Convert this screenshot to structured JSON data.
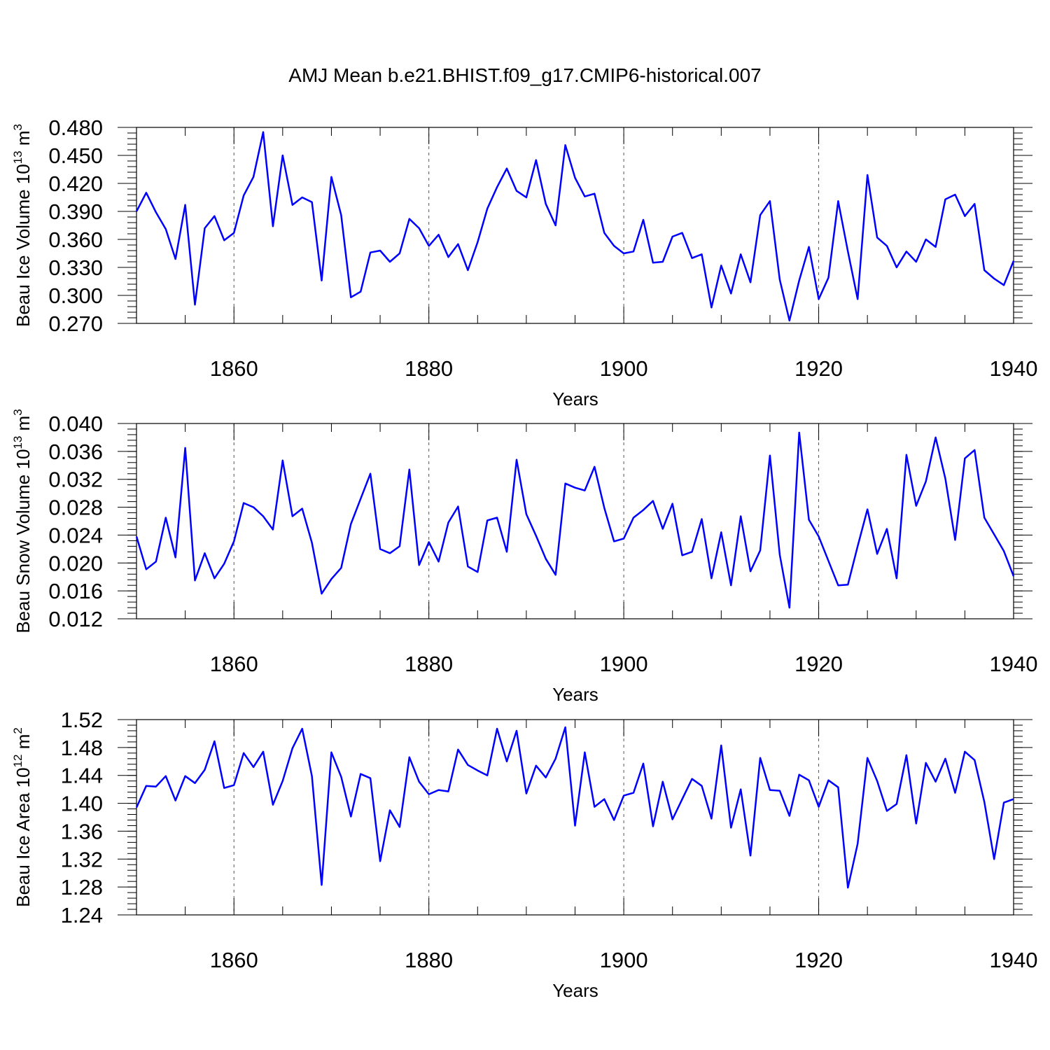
{
  "title": "AMJ Mean b.e21.BHIST.f09_g17.CMIP6-historical.007",
  "chart_data": [
    {
      "type": "line",
      "name": "ice-volume",
      "ylabel": "Beau Ice Volume 10",
      "ylabel_exp": "13",
      "ylabel_unit": " m",
      "ylabel_unit_exp": "3",
      "xlabel": "Years",
      "xlim": [
        1850,
        1940
      ],
      "ylim": [
        0.27,
        0.48
      ],
      "yticks": [
        0.27,
        0.3,
        0.33,
        0.36,
        0.39,
        0.42,
        0.45,
        0.48
      ],
      "ytick_labels": [
        "0.270",
        "0.300",
        "0.330",
        "0.360",
        "0.390",
        "0.420",
        "0.450",
        "0.480"
      ],
      "yminor_step": 0.006,
      "xticks": [
        1860,
        1880,
        1900,
        1920,
        1940
      ],
      "xtick_labels": [
        "1860",
        "1880",
        "1900",
        "1920",
        "1940"
      ],
      "grid_x": [
        1860,
        1880,
        1900,
        1920
      ],
      "x_start": 1850,
      "values": [
        0.39,
        0.41,
        0.389,
        0.371,
        0.339,
        0.397,
        0.29,
        0.372,
        0.385,
        0.359,
        0.367,
        0.407,
        0.427,
        0.475,
        0.374,
        0.45,
        0.397,
        0.405,
        0.4,
        0.316,
        0.427,
        0.386,
        0.298,
        0.304,
        0.346,
        0.348,
        0.336,
        0.345,
        0.382,
        0.372,
        0.353,
        0.365,
        0.341,
        0.355,
        0.327,
        0.357,
        0.393,
        0.416,
        0.436,
        0.412,
        0.405,
        0.445,
        0.398,
        0.375,
        0.461,
        0.426,
        0.406,
        0.409,
        0.367,
        0.353,
        0.345,
        0.347,
        0.381,
        0.335,
        0.336,
        0.363,
        0.367,
        0.34,
        0.344,
        0.287,
        0.332,
        0.302,
        0.344,
        0.314,
        0.386,
        0.401,
        0.317,
        0.273,
        0.316,
        0.352,
        0.296,
        0.319,
        0.401,
        0.347,
        0.296,
        0.429,
        0.362,
        0.353,
        0.33,
        0.347,
        0.336,
        0.36,
        0.352,
        0.403,
        0.408,
        0.385,
        0.398,
        0.327,
        0.318,
        0.311,
        0.337
      ]
    },
    {
      "type": "line",
      "name": "snow-volume",
      "ylabel": "Beau Snow Volume 10",
      "ylabel_exp": "13",
      "ylabel_unit": " m",
      "ylabel_unit_exp": "3",
      "xlabel": "Years",
      "xlim": [
        1850,
        1940
      ],
      "ylim": [
        0.012,
        0.04
      ],
      "yticks": [
        0.012,
        0.016,
        0.02,
        0.024,
        0.028,
        0.032,
        0.036,
        0.04
      ],
      "ytick_labels": [
        "0.012",
        "0.016",
        "0.020",
        "0.024",
        "0.028",
        "0.032",
        "0.036",
        "0.040"
      ],
      "yminor_step": 0.0008,
      "xticks": [
        1860,
        1880,
        1900,
        1920,
        1940
      ],
      "xtick_labels": [
        "1860",
        "1880",
        "1900",
        "1920",
        "1940"
      ],
      "grid_x": [
        1860,
        1880,
        1900,
        1920
      ],
      "x_start": 1850,
      "values": [
        0.0238,
        0.0191,
        0.0202,
        0.0265,
        0.0208,
        0.0365,
        0.0175,
        0.0214,
        0.0178,
        0.0199,
        0.0231,
        0.0286,
        0.028,
        0.0267,
        0.0248,
        0.0347,
        0.0267,
        0.0278,
        0.0229,
        0.0156,
        0.0177,
        0.0193,
        0.0256,
        0.0292,
        0.0328,
        0.022,
        0.0214,
        0.0224,
        0.0334,
        0.0197,
        0.023,
        0.0202,
        0.0258,
        0.0281,
        0.0195,
        0.0187,
        0.0261,
        0.0265,
        0.0216,
        0.0348,
        0.027,
        0.0239,
        0.0206,
        0.0183,
        0.0314,
        0.0308,
        0.0304,
        0.0338,
        0.0279,
        0.0231,
        0.0235,
        0.0265,
        0.0276,
        0.0289,
        0.0249,
        0.0285,
        0.0211,
        0.0216,
        0.0263,
        0.0178,
        0.0244,
        0.0168,
        0.0267,
        0.0188,
        0.0218,
        0.0354,
        0.0212,
        0.0136,
        0.0387,
        0.0262,
        0.0238,
        0.0203,
        0.0168,
        0.0169,
        0.0224,
        0.0277,
        0.0213,
        0.0249,
        0.0178,
        0.0355,
        0.0282,
        0.0317,
        0.038,
        0.0321,
        0.0233,
        0.035,
        0.0362,
        0.0265,
        0.0241,
        0.0217,
        0.0181
      ]
    },
    {
      "type": "line",
      "name": "ice-area",
      "ylabel": "Beau Ice Area 10",
      "ylabel_exp": "12",
      "ylabel_unit": " m",
      "ylabel_unit_exp": "2",
      "xlabel": "Years",
      "xlim": [
        1850,
        1940
      ],
      "ylim": [
        1.24,
        1.52
      ],
      "yticks": [
        1.24,
        1.28,
        1.32,
        1.36,
        1.4,
        1.44,
        1.48,
        1.52
      ],
      "ytick_labels": [
        "1.24",
        "1.28",
        "1.32",
        "1.36",
        "1.40",
        "1.44",
        "1.48",
        "1.52"
      ],
      "yminor_step": 0.008,
      "xticks": [
        1860,
        1880,
        1900,
        1920,
        1940
      ],
      "xtick_labels": [
        "1860",
        "1880",
        "1900",
        "1920",
        "1940"
      ],
      "grid_x": [
        1860,
        1880,
        1900,
        1920
      ],
      "x_start": 1850,
      "values": [
        1.394,
        1.425,
        1.424,
        1.439,
        1.404,
        1.439,
        1.429,
        1.448,
        1.489,
        1.422,
        1.426,
        1.472,
        1.452,
        1.474,
        1.398,
        1.432,
        1.479,
        1.507,
        1.439,
        1.283,
        1.473,
        1.438,
        1.381,
        1.442,
        1.436,
        1.317,
        1.39,
        1.366,
        1.466,
        1.431,
        1.413,
        1.419,
        1.417,
        1.477,
        1.455,
        1.447,
        1.44,
        1.507,
        1.46,
        1.504,
        1.414,
        1.454,
        1.437,
        1.464,
        1.509,
        1.368,
        1.473,
        1.395,
        1.406,
        1.376,
        1.411,
        1.415,
        1.457,
        1.367,
        1.431,
        1.377,
        1.406,
        1.435,
        1.425,
        1.378,
        1.483,
        1.365,
        1.42,
        1.325,
        1.465,
        1.419,
        1.418,
        1.382,
        1.441,
        1.433,
        1.395,
        1.433,
        1.423,
        1.279,
        1.342,
        1.465,
        1.432,
        1.389,
        1.399,
        1.469,
        1.371,
        1.458,
        1.431,
        1.464,
        1.415,
        1.474,
        1.462,
        1.402,
        1.32,
        1.401,
        1.406
      ]
    }
  ]
}
